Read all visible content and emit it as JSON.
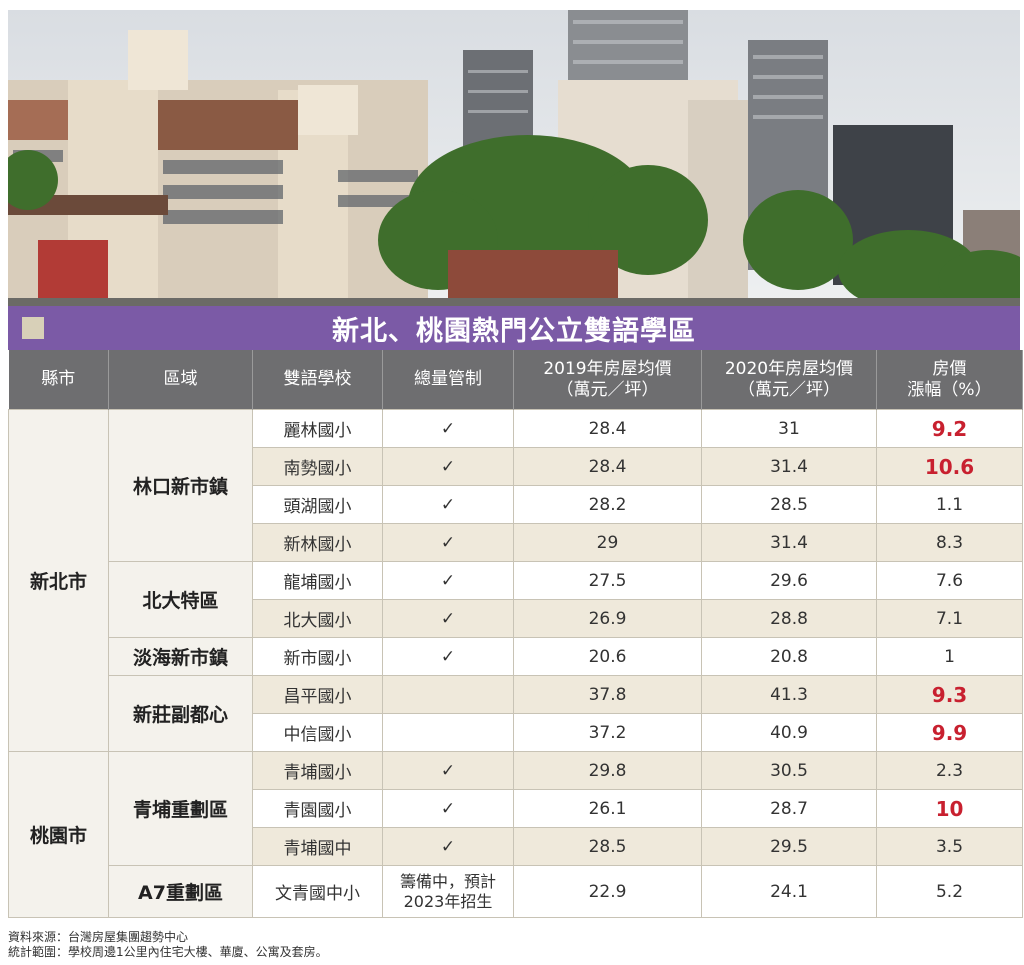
{
  "title": "新北、桃園熱門公立雙語學區",
  "headers": [
    "縣市",
    "區域",
    "雙語學校",
    "總量管制",
    "2019年房屋均價\n（萬元／坪）",
    "2020年房屋均價\n（萬元／坪）",
    "房價\n漲幅（%）"
  ],
  "counties": [
    "新北市",
    "桃園市"
  ],
  "areas": [
    "林口新市鎮",
    "北大特區",
    "淡海新市鎮",
    "新莊副都心",
    "青埔重劃區",
    "A7重劃區"
  ],
  "rows": [
    {
      "school": "麗林國小",
      "control": "✓",
      "p2019": "28.4",
      "p2020": "31",
      "rate": "9.2",
      "hl": true
    },
    {
      "school": "南勢國小",
      "control": "✓",
      "p2019": "28.4",
      "p2020": "31.4",
      "rate": "10.6",
      "hl": true
    },
    {
      "school": "頭湖國小",
      "control": "✓",
      "p2019": "28.2",
      "p2020": "28.5",
      "rate": "1.1",
      "hl": false
    },
    {
      "school": "新林國小",
      "control": "✓",
      "p2019": "29",
      "p2020": "31.4",
      "rate": "8.3",
      "hl": false
    },
    {
      "school": "龍埔國小",
      "control": "✓",
      "p2019": "27.5",
      "p2020": "29.6",
      "rate": "7.6",
      "hl": false
    },
    {
      "school": "北大國小",
      "control": "✓",
      "p2019": "26.9",
      "p2020": "28.8",
      "rate": "7.1",
      "hl": false
    },
    {
      "school": "新市國小",
      "control": "✓",
      "p2019": "20.6",
      "p2020": "20.8",
      "rate": "1",
      "hl": false
    },
    {
      "school": "昌平國小",
      "control": "",
      "p2019": "37.8",
      "p2020": "41.3",
      "rate": "9.3",
      "hl": true
    },
    {
      "school": "中信國小",
      "control": "",
      "p2019": "37.2",
      "p2020": "40.9",
      "rate": "9.9",
      "hl": true
    },
    {
      "school": "青埔國小",
      "control": "✓",
      "p2019": "29.8",
      "p2020": "30.5",
      "rate": "2.3",
      "hl": false
    },
    {
      "school": "青園國小",
      "control": "✓",
      "p2019": "26.1",
      "p2020": "28.7",
      "rate": "10",
      "hl": true
    },
    {
      "school": "青埔國中",
      "control": "✓",
      "p2019": "28.5",
      "p2020": "29.5",
      "rate": "3.5",
      "hl": false
    },
    {
      "school": "文青國中小",
      "control": "籌備中，預計\n2023年招生",
      "p2019": "22.9",
      "p2020": "24.1",
      "rate": "5.2",
      "hl": false
    }
  ],
  "notes": [
    "資料來源：台灣房屋集團趨勢中心",
    "統計範圍：學校周邊1公里內住宅大樓、華廈、公寓及套房。"
  ],
  "colors": {
    "accent": "#7b5aa6",
    "highlight": "#c8202f",
    "header": "#6e6e70",
    "stripe": "#efe9db"
  }
}
